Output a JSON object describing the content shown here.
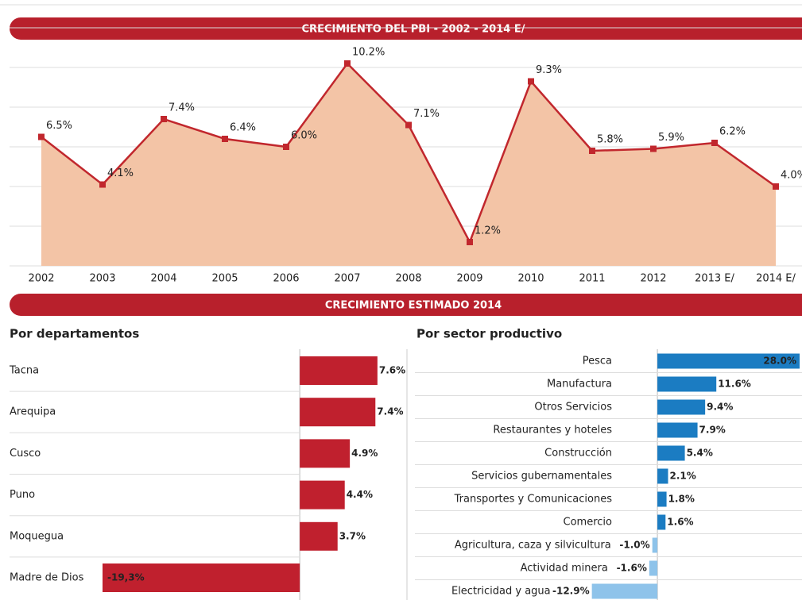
{
  "banner": "CRECIMIENTO ESTIMADO 2014",
  "chart_data": [
    {
      "type": "area",
      "title": "CRECIMIENTO DEL PBI - 2002 - 2014 E/",
      "categories": [
        "2002",
        "2003",
        "2004",
        "2005",
        "2006",
        "2007",
        "2008",
        "2009",
        "2010",
        "2011",
        "2012",
        "2013 E/",
        "2014 E/"
      ],
      "values": [
        6.5,
        4.1,
        7.4,
        6.4,
        6.0,
        10.2,
        7.1,
        1.2,
        9.3,
        5.8,
        5.9,
        6.2,
        4.0
      ],
      "value_labels": [
        "6.5%",
        "4.1%",
        "7.4%",
        "6.4%",
        "6.0%",
        "10.2%",
        "7.1%",
        "1.2%",
        "9.3%",
        "5.8%",
        "5.9%",
        "6.2%",
        "4.0%"
      ],
      "color": "#c1272d",
      "fill": "#f3c4a6",
      "ylim": [
        0,
        12
      ],
      "yticks": [
        0,
        2,
        4,
        6,
        8,
        10,
        12
      ],
      "grid": true
    },
    {
      "type": "hbar",
      "title": "Por departamentos",
      "categories": [
        "Tacna",
        "Arequipa",
        "Cusco",
        "Puno",
        "Moquegua",
        "Madre de Dios"
      ],
      "values": [
        7.6,
        7.4,
        4.9,
        4.4,
        3.7,
        -19.3
      ],
      "value_labels": [
        "7.6%",
        "7.4%",
        "4.9%",
        "4.4%",
        "3.7%",
        "-19,3%"
      ],
      "color": "#c0202e",
      "negative_color": "#c0202e",
      "xlim": [
        -20,
        8
      ]
    },
    {
      "type": "hbar",
      "title": "Por sector productivo",
      "categories": [
        "Pesca",
        "Manufactura",
        "Otros Servicios",
        "Restaurantes y hoteles",
        "Construcción",
        "Servicios gubernamentales",
        "Transportes y Comunicaciones",
        "Comercio",
        "Agricultura, caza y silvicultura",
        "Actividad minera",
        "Electricidad y agua"
      ],
      "values": [
        28.0,
        11.6,
        9.4,
        7.9,
        5.4,
        2.1,
        1.8,
        1.6,
        -1.0,
        -1.6,
        -12.9
      ],
      "value_labels": [
        "28.0%",
        "11.6%",
        "9.4%",
        "7.9%",
        "5.4%",
        "2.1%",
        "1.8%",
        "1.6%",
        "-1.0%",
        "-1.6%",
        "-12.9%"
      ],
      "color": "#1b7cc2",
      "negative_color": "#8ec3ea",
      "xlim": [
        -13,
        28
      ]
    }
  ]
}
